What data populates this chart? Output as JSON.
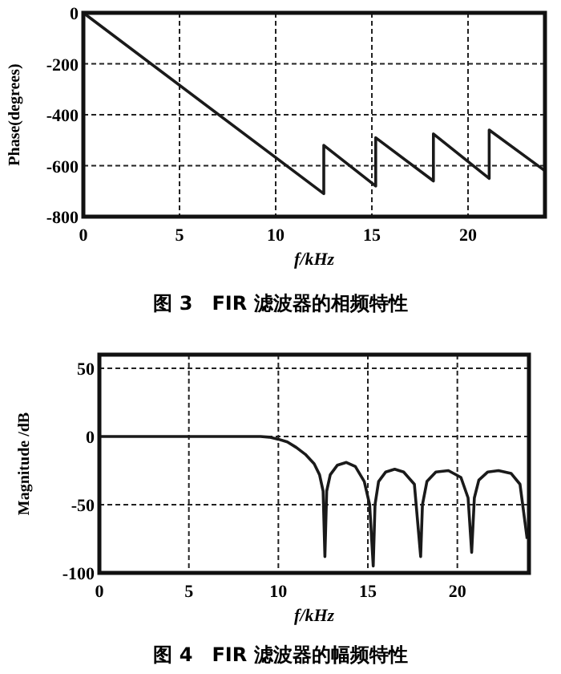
{
  "chart_data": [
    {
      "type": "line",
      "title": "图 3　FIR 滤波器的相频特性",
      "xlabel": "f/kHz",
      "ylabel": "Phase(degrees)",
      "xlim": [
        0,
        24
      ],
      "ylim": [
        -800,
        0
      ],
      "xticks": [
        0,
        5,
        10,
        15,
        20
      ],
      "yticks": [
        0,
        -200,
        -400,
        -600,
        -800
      ],
      "grid": true,
      "series": [
        {
          "color": "#1a1a1a",
          "x": [
            0,
            12.5,
            12.5,
            15.2,
            15.2,
            18.2,
            18.2,
            21.1,
            21.1,
            24
          ],
          "values": [
            0,
            -710,
            -520,
            -680,
            -490,
            -660,
            -475,
            -650,
            -460,
            -620
          ]
        }
      ]
    },
    {
      "type": "line",
      "title": "图 4　FIR 滤波器的幅频特性",
      "xlabel": "f/kHz",
      "ylabel": "Magnitude /dB",
      "xlim": [
        0,
        24
      ],
      "ylim": [
        -100,
        60
      ],
      "xticks": [
        0,
        5,
        10,
        15,
        20
      ],
      "yticks": [
        50,
        0,
        -50,
        -100
      ],
      "grid": true,
      "series": [
        {
          "color": "#1a1a1a",
          "x": [
            0,
            5,
            9,
            9.5,
            10,
            10.5,
            11,
            11.5,
            12,
            12.3,
            12.5,
            12.6,
            12.7,
            12.9,
            13.3,
            13.8,
            14.3,
            14.8,
            15.1,
            15.3,
            15.4,
            15.6,
            16,
            16.5,
            17,
            17.6,
            17.95,
            18.05,
            18.3,
            18.8,
            19.5,
            20.2,
            20.6,
            20.8,
            20.95,
            21.2,
            21.7,
            22.3,
            23,
            23.5,
            23.9
          ],
          "values": [
            0,
            0,
            0,
            -0.5,
            -2,
            -4,
            -8,
            -13,
            -20,
            -28,
            -40,
            -88,
            -40,
            -28,
            -21,
            -19,
            -22,
            -33,
            -50,
            -95,
            -50,
            -33,
            -26,
            -24,
            -26,
            -35,
            -88,
            -50,
            -33,
            -26,
            -25,
            -30,
            -45,
            -85,
            -45,
            -32,
            -26,
            -25,
            -27,
            -35,
            -75
          ]
        }
      ]
    }
  ]
}
